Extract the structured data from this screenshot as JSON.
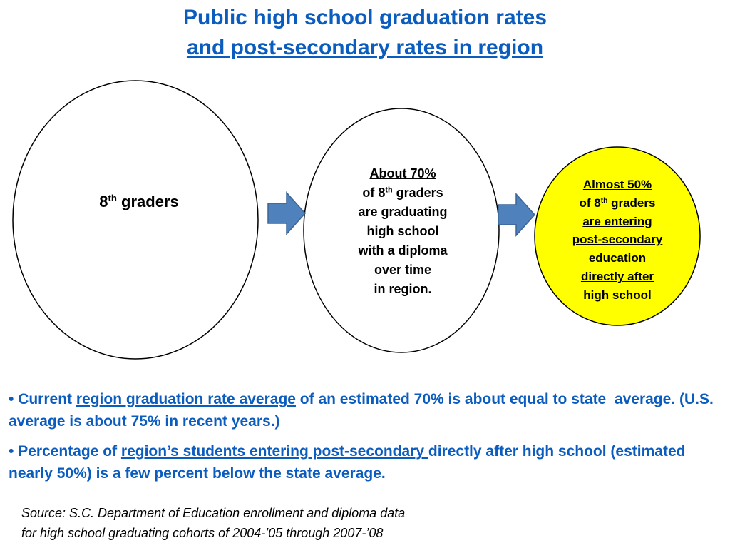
{
  "title": {
    "line1": "Public high school graduation rates",
    "line2": "and post-secondary rates in region"
  },
  "nodes": [
    {
      "label": {
        "base": "8",
        "sup": "th",
        "rest": " graders"
      }
    },
    {
      "lines": [
        "About 70%",
        {
          "base": "of 8",
          "sup": "th",
          "rest": " graders"
        },
        "are graduating",
        "high school",
        "with a diploma",
        "over time",
        "in region."
      ]
    },
    {
      "lines": [
        "Almost 50%",
        {
          "base": "of 8",
          "sup": "th",
          "rest": " graders"
        },
        "are entering",
        "post-secondary",
        "education",
        "directly after",
        "high school"
      ]
    }
  ],
  "bullets": [
    {
      "parts": [
        "Current ",
        "region graduation rate average",
        " of an estimated 70% is about equal to state  average. (U.S. average is about 75% in recent years.)"
      ]
    },
    {
      "parts": [
        "Percentage of ",
        "region’s students entering post-secondary ",
        "directly after high school (estimated nearly 50%) is a few percent below the state average."
      ]
    }
  ],
  "source": {
    "line1": "Source: S.C. Department of Education enrollment and diploma data",
    "line2": "for high school graduating cohorts of 2004-’05 through 2007-’08"
  }
}
